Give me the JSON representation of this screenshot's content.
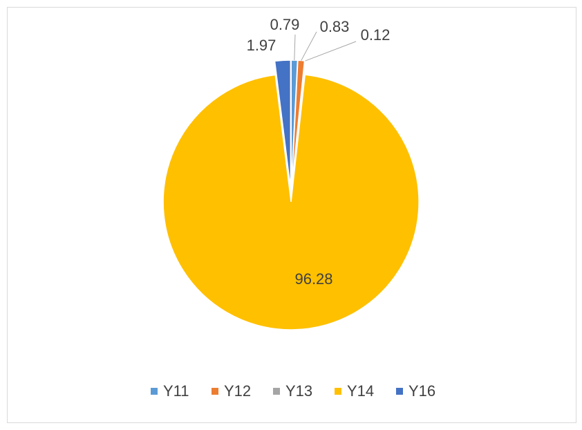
{
  "chart_data": {
    "type": "pie",
    "categories": [
      "Y11",
      "Y12",
      "Y13",
      "Y14",
      "Y16"
    ],
    "values": [
      0.79,
      0.83,
      0.12,
      96.28,
      1.97
    ],
    "colors": [
      "#5b9bd5",
      "#ed7d31",
      "#a5a5a5",
      "#ffc000",
      "#4472c4"
    ],
    "legend": "bottom"
  }
}
